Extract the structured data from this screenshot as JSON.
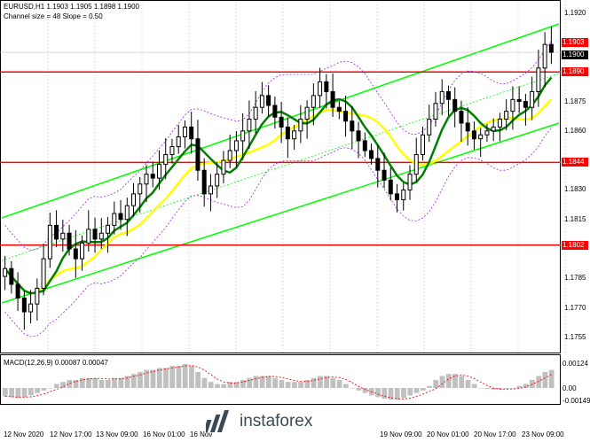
{
  "header": {
    "symbol_line": "EURUSD,H1  1.1903 1.1905 1.1898 1.1900",
    "channel_line": "Channel size = 48 Slope = 0.50"
  },
  "price_axis": {
    "ticks": [
      "1.1920",
      "1.1905",
      "1.1875",
      "1.1860",
      "1.1830",
      "1.1815",
      "1.1785",
      "1.1770",
      "1.1755"
    ],
    "level_tags": [
      {
        "value": "1.1903",
        "color": "#ff0000",
        "text_color": "#ffffff"
      },
      {
        "value": "1.1900",
        "color": "#000000",
        "text_color": "#ffffff"
      },
      {
        "value": "1.1890",
        "color": "#ff0000",
        "text_color": "#ffffff"
      },
      {
        "value": "1.1844",
        "color": "#ff0000",
        "text_color": "#ffffff"
      },
      {
        "value": "1.1802",
        "color": "#ff0000",
        "text_color": "#ffffff"
      }
    ]
  },
  "macd": {
    "label": "MACD(12,26,9) 0.00087 0.00047",
    "ticks": [
      "0.00124",
      "0.00",
      "-0.00149"
    ]
  },
  "time_axis": {
    "labels": [
      "12 Nov 2020",
      "12 Nov 17:00",
      "13 Nov 09:00",
      "16 Nov 01:00",
      "16 Nov",
      "19 Nov 09:00",
      "20 Nov 01:00",
      "20 Nov 17:00",
      "23 Nov 09:00"
    ]
  },
  "watermark": {
    "text": "instaforex"
  },
  "colors": {
    "candle": "#000000",
    "channel": "#00ff00",
    "ma_green": "#008000",
    "ma_yellow": "#ffff00",
    "level_line": "#ff0000",
    "bands": "#a020f0",
    "macd_hist": "#c0c0c0",
    "macd_signal": "#ff0000"
  },
  "chart_data": {
    "type": "candlestick",
    "symbol": "EURUSD",
    "timeframe": "H1",
    "ylim": [
      1.175,
      1.1923
    ],
    "horizontal_levels": [
      1.189,
      1.1844,
      1.1802
    ],
    "last_price": 1.19,
    "closes": [
      1.179,
      1.1782,
      1.1775,
      1.1768,
      1.1772,
      1.178,
      1.1795,
      1.1812,
      1.1805,
      1.1808,
      1.18,
      1.1795,
      1.1803,
      1.181,
      1.1805,
      1.1808,
      1.1812,
      1.1818,
      1.1815,
      1.1822,
      1.1828,
      1.1833,
      1.1838,
      1.1836,
      1.1843,
      1.1848,
      1.1852,
      1.1857,
      1.1862,
      1.1856,
      1.184,
      1.1828,
      1.1832,
      1.1838,
      1.1845,
      1.185,
      1.1855,
      1.186,
      1.1866,
      1.1872,
      1.1878,
      1.1873,
      1.1867,
      1.1862,
      1.1856,
      1.186,
      1.1866,
      1.1872,
      1.1878,
      1.1885,
      1.188,
      1.1872,
      1.187,
      1.1865,
      1.186,
      1.1855,
      1.185,
      1.1846,
      1.184,
      1.1835,
      1.1828,
      1.1825,
      1.183,
      1.1838,
      1.1848,
      1.1858,
      1.1866,
      1.1874,
      1.188,
      1.1876,
      1.187,
      1.1864,
      1.186,
      1.1856,
      1.1858,
      1.186,
      1.1862,
      1.1866,
      1.187,
      1.1876,
      1.1875,
      1.1872,
      1.188,
      1.1892,
      1.1904,
      1.19
    ],
    "macd_hist": [
      -0.001,
      -0.0011,
      -0.0012,
      -0.0011,
      -0.0009,
      -0.0006,
      -0.0003,
      0.0,
      0.0002,
      0.0003,
      0.0004,
      0.0004,
      0.0005,
      0.0005,
      0.0005,
      0.0004,
      0.0004,
      0.0005,
      0.0005,
      0.0006,
      0.0007,
      0.0008,
      0.0009,
      0.0009,
      0.001,
      0.001,
      0.0011,
      0.0011,
      0.0012,
      0.0011,
      0.0008,
      0.0005,
      0.0003,
      0.0002,
      0.0002,
      0.0003,
      0.0003,
      0.0004,
      0.0005,
      0.0006,
      0.0006,
      0.0006,
      0.0005,
      0.0004,
      0.0003,
      0.0003,
      0.0003,
      0.0004,
      0.0005,
      0.0006,
      0.0006,
      0.0005,
      0.0004,
      0.0002,
      0.0,
      -0.0003,
      -0.0006,
      -0.0009,
      -0.0011,
      -0.0013,
      -0.0014,
      -0.0014,
      -0.0012,
      -0.0009,
      -0.0006,
      -0.0003,
      0.0001,
      0.0004,
      0.0006,
      0.0007,
      0.0007,
      0.0006,
      0.0004,
      0.0002,
      0.0,
      -0.0001,
      -0.0002,
      -0.0002,
      -0.0001,
      0.0,
      0.0001,
      0.0002,
      0.0004,
      0.0006,
      0.0008,
      0.0009
    ]
  }
}
